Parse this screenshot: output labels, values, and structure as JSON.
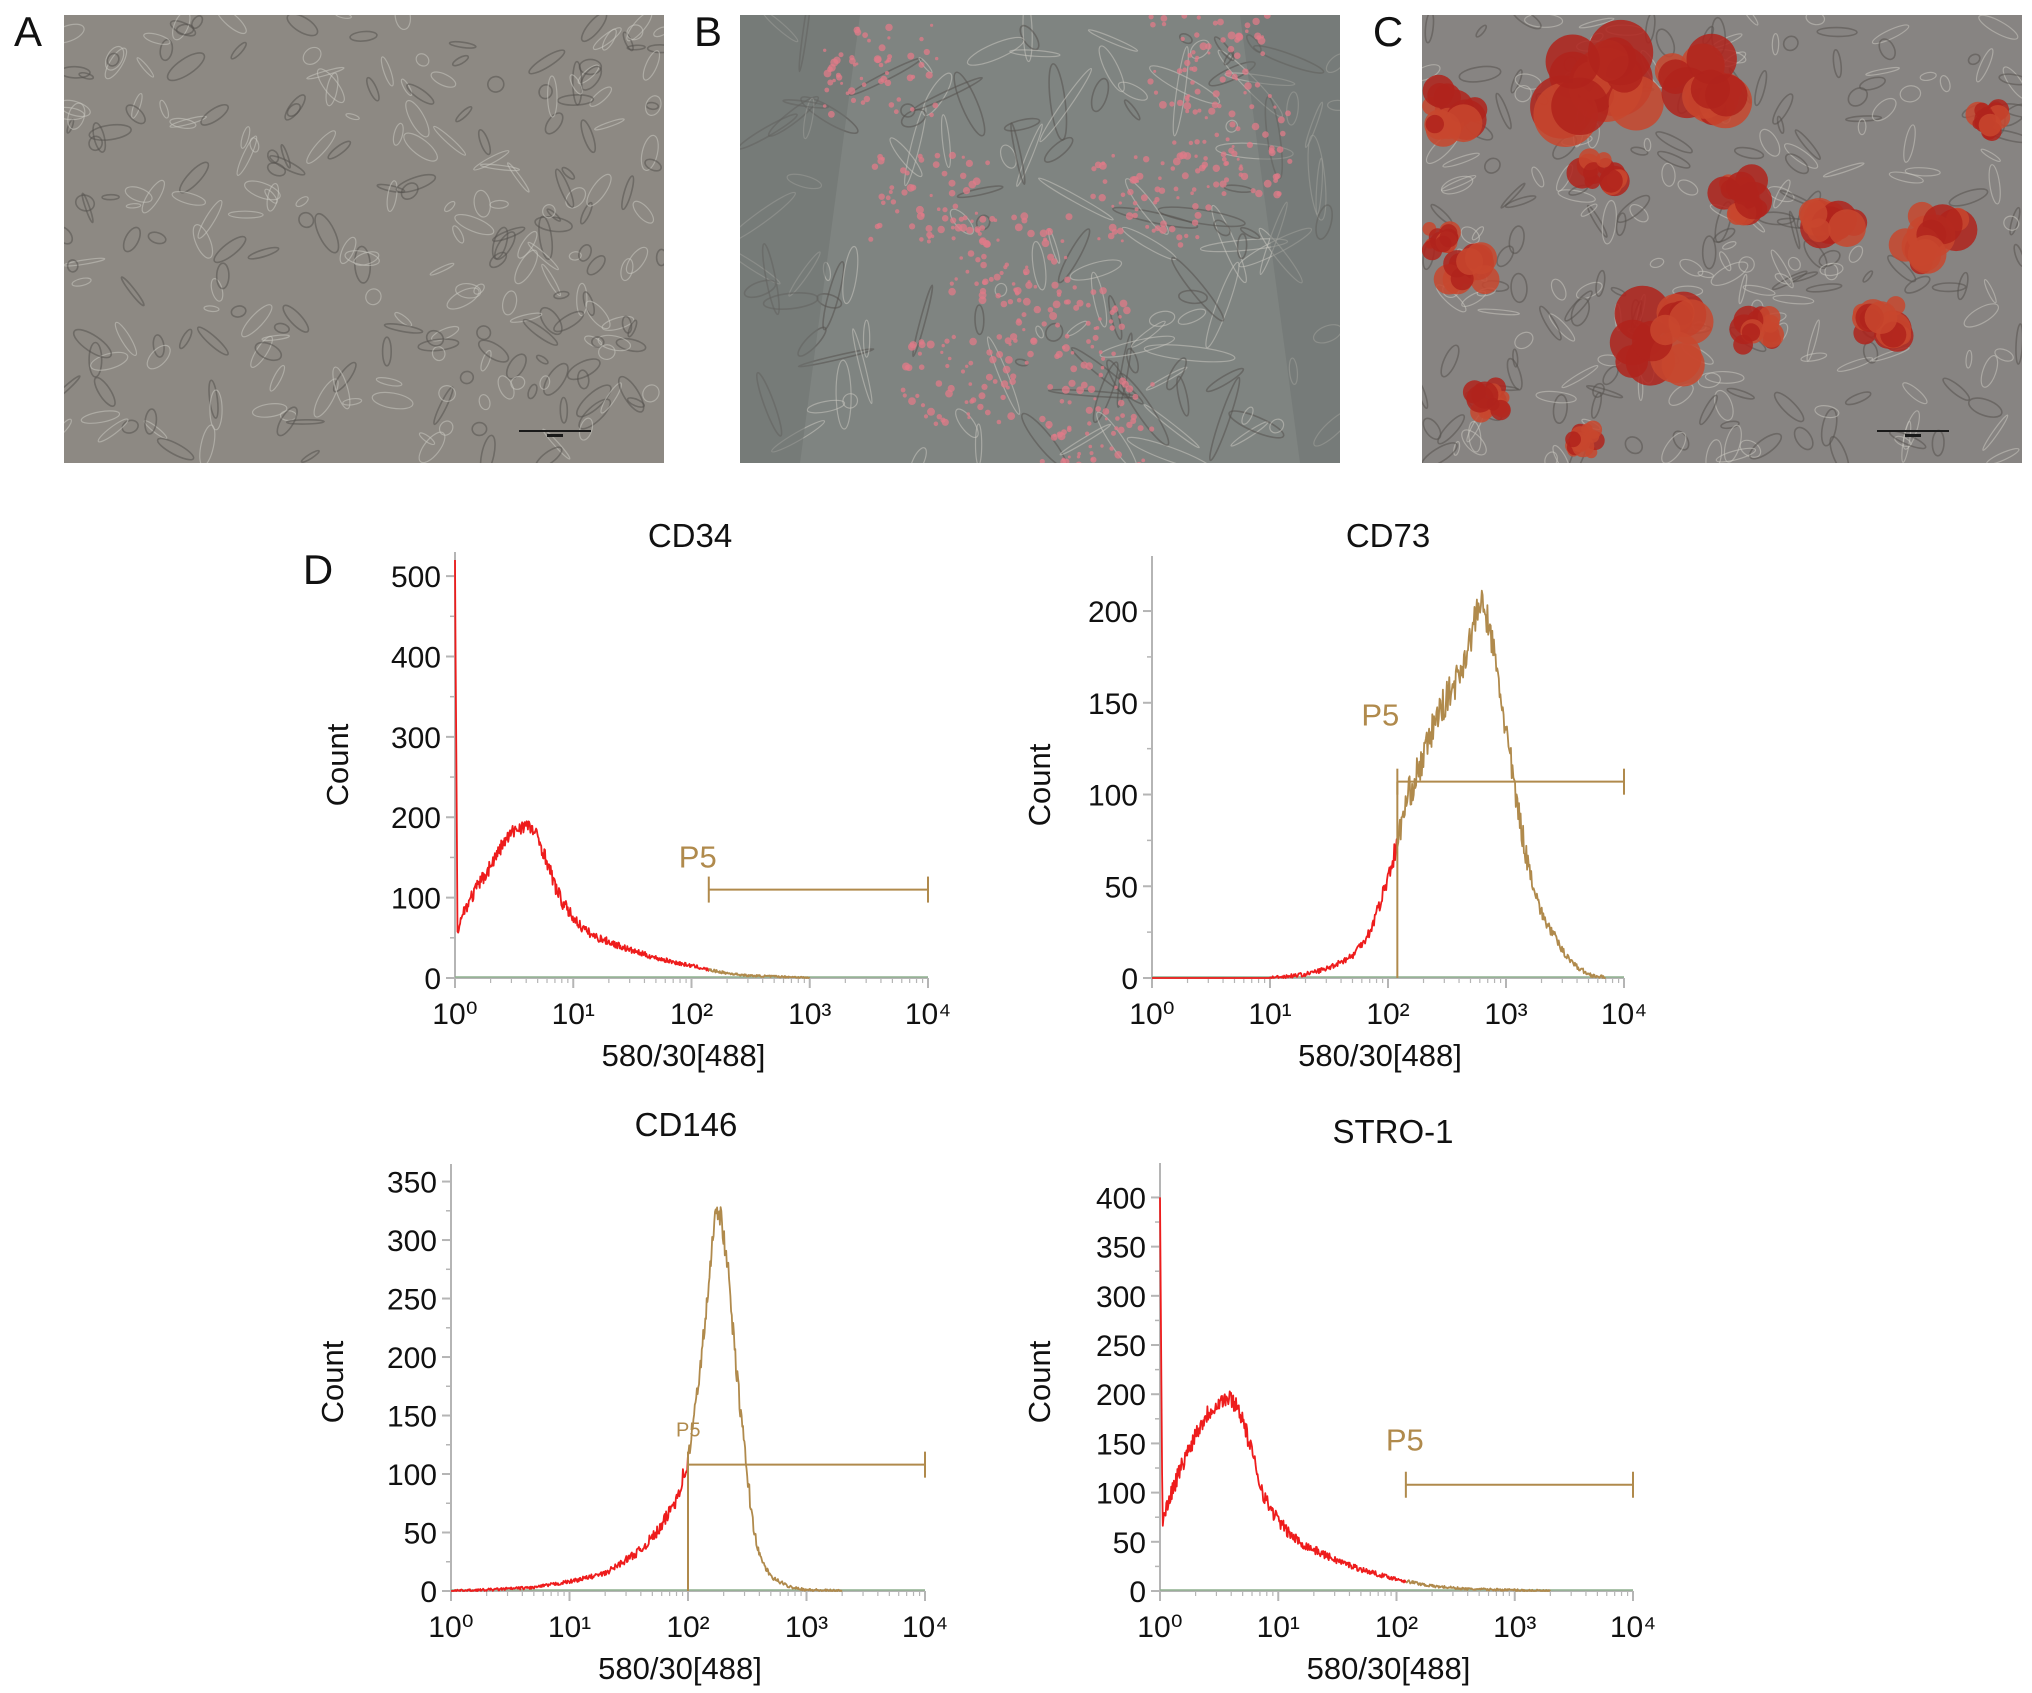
{
  "colors": {
    "negative": "#ee1c1c",
    "positive": "#b08a4c",
    "axis": "#b5b5b5",
    "text": "#111111",
    "baseline": "#8fb08f"
  },
  "micrographs": [
    {
      "letter": "A",
      "tint": "#8d8983",
      "stain": "none"
    },
    {
      "letter": "B",
      "tint": "#7f8481",
      "stain": "pink-droplets"
    },
    {
      "letter": "C",
      "tint": "#878482",
      "stain": "red-nodules"
    }
  ],
  "panel_d_label": "D",
  "chart_data": [
    {
      "type": "line",
      "title": "CD34",
      "xlabel": "580/30[488]",
      "ylabel": "Count",
      "xscale": "log",
      "xlim": [
        1,
        10000
      ],
      "xticks": [
        1,
        10,
        100,
        1000,
        10000
      ],
      "ylim": [
        0,
        530
      ],
      "yticks": [
        0,
        100,
        200,
        300,
        400,
        500
      ],
      "gate": {
        "label": "P5",
        "from": 140,
        "to": 10000,
        "level": 110
      },
      "series": [
        {
          "x": [
            1,
            1.05,
            1.2,
            1.5,
            2,
            2.5,
            3,
            3.5,
            4,
            4.5,
            5,
            6,
            7,
            8,
            10,
            12,
            15,
            20,
            30,
            50,
            80,
            110,
            140,
            200,
            300,
            500,
            800,
            1000
          ],
          "y": [
            520,
            60,
            85,
            110,
            140,
            165,
            180,
            188,
            190,
            185,
            175,
            145,
            115,
            95,
            75,
            62,
            52,
            45,
            35,
            25,
            18,
            14,
            10,
            6,
            3,
            2,
            1,
            0
          ]
        }
      ]
    },
    {
      "type": "line",
      "title": "CD73",
      "xlabel": "580/30[488]",
      "ylabel": "Count",
      "xscale": "log",
      "xlim": [
        1,
        10000
      ],
      "xticks": [
        1,
        10,
        100,
        1000,
        10000
      ],
      "ylim": [
        0,
        230
      ],
      "yticks": [
        0,
        50,
        100,
        150,
        200
      ],
      "gate": {
        "label": "P5",
        "from": 120,
        "to": 10000,
        "level": 107
      },
      "series": [
        {
          "x": [
            1,
            10,
            20,
            30,
            50,
            70,
            90,
            110,
            120,
            130,
            150,
            200,
            250,
            300,
            400,
            500,
            600,
            700,
            800,
            1000,
            1200,
            1500,
            2000,
            3000,
            4000,
            5000,
            7000
          ],
          "y": [
            0,
            0,
            2,
            5,
            12,
            25,
            45,
            65,
            72,
            85,
            100,
            120,
            140,
            150,
            165,
            185,
            205,
            195,
            175,
            135,
            100,
            65,
            35,
            15,
            6,
            2,
            0
          ]
        }
      ]
    },
    {
      "type": "line",
      "title": "CD146",
      "xlabel": "580/30[488]",
      "ylabel": "Count",
      "xscale": "log",
      "xlim": [
        1,
        10000
      ],
      "xticks": [
        1,
        10,
        100,
        1000,
        10000
      ],
      "ylim": [
        0,
        365
      ],
      "yticks": [
        0,
        50,
        100,
        150,
        200,
        250,
        300,
        350
      ],
      "gate": {
        "label": "P5",
        "from": 100,
        "to": 10000,
        "level": 108
      },
      "series": [
        {
          "x": [
            1,
            2,
            5,
            10,
            20,
            40,
            60,
            80,
            100,
            120,
            150,
            170,
            190,
            220,
            250,
            300,
            350,
            400,
            500,
            700,
            1000,
            2000
          ],
          "y": [
            0,
            1,
            3,
            8,
            15,
            35,
            55,
            80,
            110,
            170,
            260,
            330,
            320,
            270,
            200,
            120,
            60,
            30,
            12,
            4,
            1,
            0
          ]
        }
      ]
    },
    {
      "type": "line",
      "title": "STRO-1",
      "xlabel": "580/30[488]",
      "ylabel": "Count",
      "xscale": "log",
      "xlim": [
        1,
        10000
      ],
      "xticks": [
        1,
        10,
        100,
        1000,
        10000
      ],
      "ylim": [
        0,
        435
      ],
      "yticks": [
        0,
        50,
        100,
        150,
        200,
        250,
        300,
        350,
        400
      ],
      "gate": {
        "label": "P5",
        "from": 120,
        "to": 10000,
        "level": 108
      },
      "series": [
        {
          "x": [
            1,
            1.05,
            1.2,
            1.5,
            2,
            2.5,
            3,
            3.5,
            4,
            4.5,
            5,
            6,
            7,
            8,
            10,
            12,
            15,
            20,
            30,
            50,
            80,
            120,
            200,
            400,
            1000,
            2000
          ],
          "y": [
            400,
            70,
            95,
            125,
            160,
            180,
            190,
            195,
            195,
            188,
            175,
            140,
            110,
            90,
            72,
            60,
            50,
            42,
            32,
            22,
            15,
            10,
            5,
            2,
            1,
            0
          ]
        }
      ]
    }
  ]
}
